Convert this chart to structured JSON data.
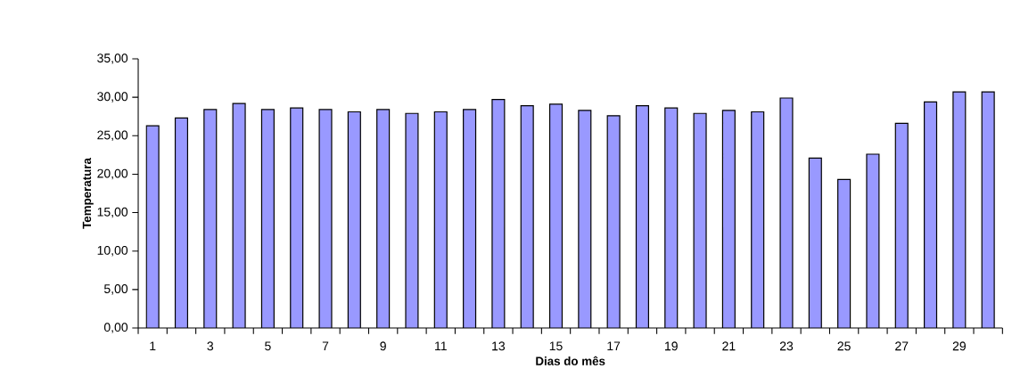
{
  "chart_data": {
    "type": "bar",
    "xlabel": "Dias do mês",
    "ylabel": "Temperatura",
    "categories": [
      "1",
      null,
      "3",
      null,
      "5",
      null,
      "7",
      null,
      "9",
      null,
      "11",
      null,
      "13",
      null,
      "15",
      null,
      "17",
      null,
      "19",
      null,
      "21",
      null,
      "23",
      null,
      "25",
      null,
      "27",
      null,
      "29",
      null
    ],
    "values": [
      26.3,
      27.3,
      28.4,
      29.2,
      28.4,
      28.6,
      28.4,
      28.1,
      28.4,
      27.9,
      28.1,
      28.4,
      29.7,
      28.9,
      29.1,
      28.3,
      27.6,
      28.9,
      28.6,
      27.9,
      28.3,
      28.1,
      29.9,
      22.1,
      19.3,
      22.6,
      26.6,
      29.4,
      30.7,
      30.7
    ],
    "color": "#9999ff",
    "ylim": [
      0,
      35
    ],
    "yticks": [
      {
        "value": 0,
        "label": "0,00"
      },
      {
        "value": 5,
        "label": "5,00"
      },
      {
        "value": 10,
        "label": "10,00"
      },
      {
        "value": 15,
        "label": "15,00"
      },
      {
        "value": 20,
        "label": "20,00"
      },
      {
        "value": 25,
        "label": "25,00"
      },
      {
        "value": 30,
        "label": "30,00"
      },
      {
        "value": 35,
        "label": "35,00"
      }
    ],
    "grid": false
  }
}
